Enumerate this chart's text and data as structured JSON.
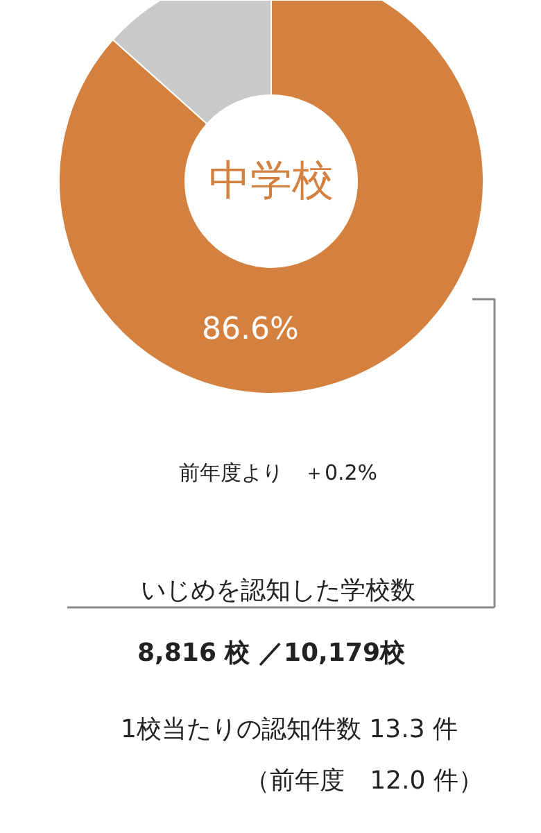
{
  "chart_data": {
    "type": "donut",
    "title": "中学校",
    "categories": [
      null,
      null
    ],
    "values": [
      86.6,
      13.4
    ],
    "colors": [
      "#d4803e",
      "#c9c9c9"
    ],
    "value_labels": [
      "86.6%",
      null
    ],
    "annotations": [
      "前年度より　＋0.2%",
      "いじめを認知した学校数",
      "8,816 校 ／10,179校",
      "1校当たりの認知件数 13.3 件",
      "（前年度　12.0 件）"
    ]
  }
}
